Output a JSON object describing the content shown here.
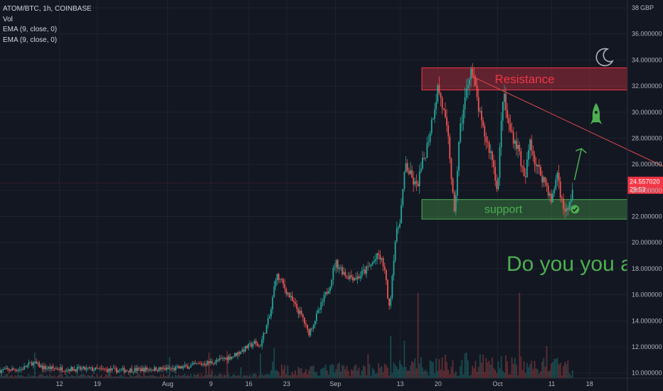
{
  "legend": {
    "symbol": "ATOM/BTC, 1h, COINBASE",
    "vol": "Vol",
    "ema1": "EMA (9, close, 0)",
    "ema2": "EMA (9, close, 0)"
  },
  "colors": {
    "background": "#131722",
    "up": "#26a69a",
    "down": "#ef5350",
    "resistance": "#f23645",
    "support": "#4caf50",
    "axis_text": "#b2b5be"
  },
  "chart_data": {
    "type": "candlestick",
    "y_axis": {
      "ticks": [
        "38",
        "36.000000",
        "34.000000",
        "32.000000",
        "30.000000",
        "28.000000",
        "26.000000",
        "24.000000",
        "22.000000",
        "20.000000",
        "18.000000",
        "16.000000",
        "14.000000",
        "12.000000",
        "10.000000"
      ],
      "tick_values": [
        38,
        36,
        34,
        32,
        30,
        28,
        26,
        24,
        22,
        20,
        18,
        16,
        14,
        12,
        10
      ],
      "currency": "GBP",
      "range": [
        9.6,
        38.6
      ]
    },
    "x_axis": {
      "ticks": [
        "12",
        "19",
        "Aug",
        "9",
        "16",
        "23",
        "Sep",
        "13",
        "20",
        "Oct",
        "11",
        "18"
      ],
      "tick_positions_days": [
        11,
        18,
        31,
        39,
        46,
        53,
        62,
        74,
        81,
        92,
        102,
        109
      ],
      "range_days": [
        0,
        116
      ]
    },
    "last_price": {
      "value": 24.557,
      "label": "24.557020",
      "countdown": "29:53"
    },
    "price_path": [
      [
        0,
        10.2
      ],
      [
        4,
        10.3
      ],
      [
        6,
        10.8
      ],
      [
        8,
        10.4
      ],
      [
        12,
        10.3
      ],
      [
        16,
        10.3
      ],
      [
        22,
        10.2
      ],
      [
        28,
        10.3
      ],
      [
        32,
        10.3
      ],
      [
        36,
        10.6
      ],
      [
        40,
        10.9
      ],
      [
        43,
        11.3
      ],
      [
        45,
        11.8
      ],
      [
        47,
        12.3
      ],
      [
        48,
        12.0
      ],
      [
        50,
        14.5
      ],
      [
        51,
        17.5
      ],
      [
        52,
        17.0
      ],
      [
        54,
        15.5
      ],
      [
        56,
        14.2
      ],
      [
        57,
        13.0
      ],
      [
        59,
        14.8
      ],
      [
        61,
        16.8
      ],
      [
        62,
        18.5
      ],
      [
        64,
        17.5
      ],
      [
        66,
        17.3
      ],
      [
        68,
        18.0
      ],
      [
        70,
        19.0
      ],
      [
        71,
        18.2
      ],
      [
        72,
        14.8
      ],
      [
        73,
        20.0
      ],
      [
        74,
        22.0
      ],
      [
        75,
        26.0
      ],
      [
        76,
        25.0
      ],
      [
        77,
        24.2
      ],
      [
        79,
        27.5
      ],
      [
        81,
        32.0
      ],
      [
        82,
        30.0
      ],
      [
        83,
        27.5
      ],
      [
        84,
        22.0
      ],
      [
        85,
        28.5
      ],
      [
        86,
        31.0
      ],
      [
        87,
        33.5
      ],
      [
        88,
        31.5
      ],
      [
        89,
        29.0
      ],
      [
        91,
        26.5
      ],
      [
        92,
        24.0
      ],
      [
        93,
        31.5
      ],
      [
        94,
        29.0
      ],
      [
        96,
        27.0
      ],
      [
        97,
        24.5
      ],
      [
        98,
        28.0
      ],
      [
        99,
        26.0
      ],
      [
        101,
        24.5
      ],
      [
        102,
        23.0
      ],
      [
        103,
        25.5
      ],
      [
        104,
        22.8
      ],
      [
        105,
        22.3
      ],
      [
        106,
        24.5
      ]
    ],
    "annotations": {
      "resistance": {
        "label": "Resistance",
        "y_range": [
          31.7,
          33.4
        ],
        "x_range_days": [
          78,
          129
        ]
      },
      "support": {
        "label": "support",
        "y_range": [
          21.8,
          23.3
        ],
        "x_range_days": [
          78,
          129
        ]
      },
      "trendline": {
        "from": [
          87,
          32.8
        ],
        "to": [
          129,
          24.6
        ]
      },
      "text": "Do you you agree?"
    }
  }
}
